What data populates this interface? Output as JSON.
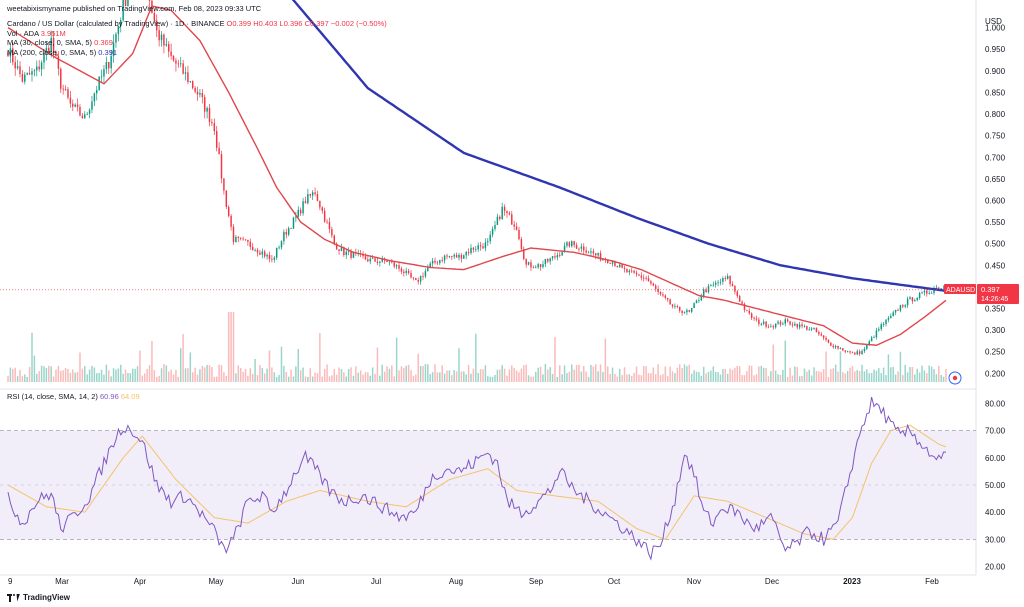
{
  "header": {
    "publisher": "weetabixismyname published on TradingView.com, Feb 08, 2023 09:33 UTC"
  },
  "legend": {
    "symbol_line": "Cardano / US Dollar (calculated by TradingView) · 1D · BINANCE",
    "ohlc": {
      "o": "O0.399",
      "h": "H0.403",
      "l": "L0.396",
      "c": "C0.397",
      "chg": "−0.002 (−0.50%)"
    },
    "vol": "Vol · ADA",
    "vol_value": "3.951M",
    "ma30": "MA (30, close, 0, SMA, 5)",
    "ma30_value": "0.369",
    "ma200": "MA (200, close, 0, SMA, 5)",
    "ma200_value": "0.391"
  },
  "rsi_legend": {
    "label": "RSI (14, close, SMA, 14, 2)",
    "rsi_value": "60.96",
    "sma_value": "64.09"
  },
  "price_axis": {
    "unit": "USD",
    "ticks": [
      "1.000",
      "0.950",
      "0.900",
      "0.850",
      "0.800",
      "0.750",
      "0.700",
      "0.650",
      "0.600",
      "0.550",
      "0.500",
      "0.450",
      "0.400",
      "0.350",
      "0.300",
      "0.250",
      "0.200"
    ],
    "badge_symbol": "ADAUSD",
    "badge_price": "0.397",
    "badge_time": "14:26:45"
  },
  "rsi_axis": {
    "ticks": [
      "80.00",
      "70.00",
      "60.00",
      "50.00",
      "40.00",
      "30.00",
      "20.00"
    ]
  },
  "time_axis": {
    "labels": [
      "9",
      "Mar",
      "Apr",
      "May",
      "Jun",
      "Jul",
      "Aug",
      "Sep",
      "Oct",
      "Nov",
      "Dec",
      "2023",
      "Feb"
    ]
  },
  "footer": {
    "brand": "TradingView"
  },
  "colors": {
    "up": "#089981",
    "down": "#f23645",
    "ma30": "#e0474c",
    "ma200": "#3035b0",
    "rsi": "#7e57c2",
    "rsi_sma": "#f5c26b",
    "rsi_band": "#ede7f6"
  },
  "chart_data": {
    "type": "candlestick",
    "price_anchors": [
      [
        0,
        0.95
      ],
      [
        6,
        0.88
      ],
      [
        12,
        0.9
      ],
      [
        18,
        0.97
      ],
      [
        22,
        0.87
      ],
      [
        26,
        0.82
      ],
      [
        32,
        0.79
      ],
      [
        36,
        0.85
      ],
      [
        42,
        0.92
      ],
      [
        48,
        1.05
      ],
      [
        54,
        1.15
      ],
      [
        58,
        1.09
      ],
      [
        62,
        0.99
      ],
      [
        68,
        0.93
      ],
      [
        74,
        0.89
      ],
      [
        80,
        0.84
      ],
      [
        86,
        0.77
      ],
      [
        90,
        0.62
      ],
      [
        94,
        0.51
      ],
      [
        100,
        0.5
      ],
      [
        106,
        0.48
      ],
      [
        110,
        0.46
      ],
      [
        115,
        0.52
      ],
      [
        120,
        0.56
      ],
      [
        124,
        0.6
      ],
      [
        128,
        0.62
      ],
      [
        132,
        0.56
      ],
      [
        136,
        0.5
      ],
      [
        140,
        0.48
      ],
      [
        146,
        0.47
      ],
      [
        152,
        0.46
      ],
      [
        158,
        0.46
      ],
      [
        164,
        0.44
      ],
      [
        170,
        0.41
      ],
      [
        176,
        0.45
      ],
      [
        182,
        0.47
      ],
      [
        188,
        0.47
      ],
      [
        194,
        0.49
      ],
      [
        200,
        0.5
      ],
      [
        206,
        0.58
      ],
      [
        212,
        0.54
      ],
      [
        216,
        0.45
      ],
      [
        222,
        0.45
      ],
      [
        228,
        0.47
      ],
      [
        234,
        0.5
      ],
      [
        240,
        0.49
      ],
      [
        246,
        0.47
      ],
      [
        252,
        0.46
      ],
      [
        256,
        0.44
      ],
      [
        260,
        0.43
      ],
      [
        266,
        0.42
      ],
      [
        272,
        0.38
      ],
      [
        278,
        0.35
      ],
      [
        284,
        0.34
      ],
      [
        290,
        0.39
      ],
      [
        296,
        0.41
      ],
      [
        300,
        0.42
      ],
      [
        304,
        0.38
      ],
      [
        308,
        0.34
      ],
      [
        312,
        0.32
      ],
      [
        318,
        0.31
      ],
      [
        324,
        0.32
      ],
      [
        330,
        0.31
      ],
      [
        336,
        0.3
      ],
      [
        342,
        0.27
      ],
      [
        348,
        0.255
      ],
      [
        352,
        0.245
      ],
      [
        356,
        0.25
      ],
      [
        360,
        0.28
      ],
      [
        364,
        0.31
      ],
      [
        368,
        0.33
      ],
      [
        372,
        0.355
      ],
      [
        376,
        0.37
      ],
      [
        380,
        0.38
      ],
      [
        384,
        0.39
      ],
      [
        388,
        0.4
      ],
      [
        391,
        0.397
      ]
    ],
    "ma30_anchors": [
      [
        0,
        1.0
      ],
      [
        20,
        0.93
      ],
      [
        40,
        0.87
      ],
      [
        52,
        0.94
      ],
      [
        60,
        1.05
      ],
      [
        68,
        1.04
      ],
      [
        80,
        0.97
      ],
      [
        92,
        0.85
      ],
      [
        104,
        0.72
      ],
      [
        112,
        0.63
      ],
      [
        122,
        0.55
      ],
      [
        132,
        0.51
      ],
      [
        144,
        0.48
      ],
      [
        160,
        0.46
      ],
      [
        176,
        0.445
      ],
      [
        190,
        0.44
      ],
      [
        206,
        0.47
      ],
      [
        218,
        0.49
      ],
      [
        236,
        0.48
      ],
      [
        252,
        0.46
      ],
      [
        264,
        0.44
      ],
      [
        276,
        0.41
      ],
      [
        288,
        0.38
      ],
      [
        298,
        0.37
      ],
      [
        312,
        0.35
      ],
      [
        326,
        0.33
      ],
      [
        340,
        0.31
      ],
      [
        352,
        0.27
      ],
      [
        362,
        0.265
      ],
      [
        372,
        0.29
      ],
      [
        382,
        0.33
      ],
      [
        391,
        0.369
      ]
    ],
    "ma200_anchors": [
      [
        118,
        1.07
      ],
      [
        150,
        0.86
      ],
      [
        190,
        0.71
      ],
      [
        230,
        0.63
      ],
      [
        262,
        0.56
      ],
      [
        292,
        0.5
      ],
      [
        322,
        0.45
      ],
      [
        352,
        0.42
      ],
      [
        372,
        0.405
      ],
      [
        391,
        0.391
      ]
    ],
    "rsi_anchors": [
      [
        0,
        45
      ],
      [
        6,
        36
      ],
      [
        12,
        44
      ],
      [
        18,
        47
      ],
      [
        22,
        34
      ],
      [
        28,
        39
      ],
      [
        34,
        46
      ],
      [
        40,
        58
      ],
      [
        44,
        66
      ],
      [
        48,
        72
      ],
      [
        52,
        70
      ],
      [
        56,
        66
      ],
      [
        62,
        50
      ],
      [
        68,
        44
      ],
      [
        74,
        46
      ],
      [
        80,
        40
      ],
      [
        86,
        33
      ],
      [
        90,
        26
      ],
      [
        94,
        30
      ],
      [
        100,
        44
      ],
      [
        106,
        46
      ],
      [
        110,
        40
      ],
      [
        116,
        48
      ],
      [
        120,
        55
      ],
      [
        124,
        60
      ],
      [
        128,
        56
      ],
      [
        134,
        48
      ],
      [
        140,
        44
      ],
      [
        148,
        46
      ],
      [
        156,
        42
      ],
      [
        164,
        38
      ],
      [
        170,
        40
      ],
      [
        176,
        52
      ],
      [
        182,
        56
      ],
      [
        188,
        55
      ],
      [
        194,
        58
      ],
      [
        200,
        62
      ],
      [
        204,
        58
      ],
      [
        208,
        44
      ],
      [
        214,
        40
      ],
      [
        220,
        43
      ],
      [
        226,
        48
      ],
      [
        230,
        55
      ],
      [
        236,
        48
      ],
      [
        242,
        44
      ],
      [
        248,
        40
      ],
      [
        254,
        36
      ],
      [
        262,
        30
      ],
      [
        268,
        25
      ],
      [
        272,
        28
      ],
      [
        278,
        45
      ],
      [
        282,
        62
      ],
      [
        286,
        54
      ],
      [
        290,
        40
      ],
      [
        294,
        36
      ],
      [
        298,
        42
      ],
      [
        304,
        40
      ],
      [
        308,
        36
      ],
      [
        312,
        34
      ],
      [
        318,
        38
      ],
      [
        324,
        26
      ],
      [
        328,
        28
      ],
      [
        334,
        33
      ],
      [
        340,
        30
      ],
      [
        346,
        36
      ],
      [
        352,
        58
      ],
      [
        356,
        72
      ],
      [
        360,
        80
      ],
      [
        364,
        78
      ],
      [
        368,
        72
      ],
      [
        372,
        68
      ],
      [
        376,
        70
      ],
      [
        380,
        66
      ],
      [
        384,
        62
      ],
      [
        388,
        59
      ],
      [
        391,
        61
      ]
    ],
    "rsi_sma_anchors": [
      [
        0,
        50
      ],
      [
        16,
        42
      ],
      [
        32,
        40
      ],
      [
        48,
        60
      ],
      [
        56,
        68
      ],
      [
        70,
        52
      ],
      [
        86,
        38
      ],
      [
        100,
        36
      ],
      [
        116,
        44
      ],
      [
        130,
        48
      ],
      [
        150,
        44
      ],
      [
        166,
        42
      ],
      [
        184,
        52
      ],
      [
        200,
        56
      ],
      [
        212,
        48
      ],
      [
        228,
        46
      ],
      [
        246,
        44
      ],
      [
        262,
        34
      ],
      [
        274,
        30
      ],
      [
        286,
        46
      ],
      [
        300,
        44
      ],
      [
        316,
        38
      ],
      [
        332,
        32
      ],
      [
        344,
        30
      ],
      [
        352,
        38
      ],
      [
        360,
        58
      ],
      [
        368,
        70
      ],
      [
        376,
        72
      ],
      [
        388,
        65
      ],
      [
        391,
        64
      ]
    ],
    "yrange_price": [
      0.18,
      1.05
    ],
    "yrange_rsi": [
      18,
      82
    ],
    "rsi_band": [
      30,
      70
    ],
    "grid": false
  }
}
